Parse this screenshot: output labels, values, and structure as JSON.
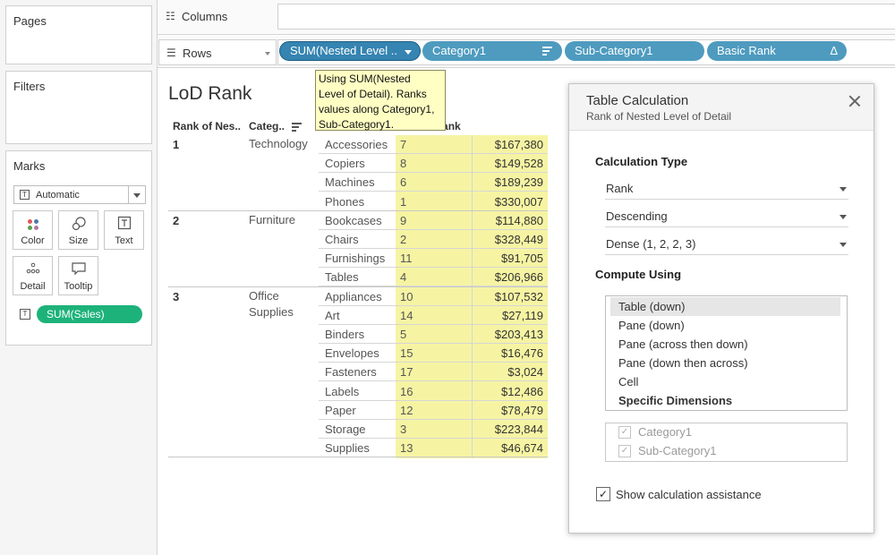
{
  "panels": {
    "pages": "Pages",
    "filters": "Filters",
    "marks": "Marks"
  },
  "marks": {
    "type": "Automatic",
    "buttons": [
      "Color",
      "Size",
      "Text",
      "Detail",
      "Tooltip"
    ],
    "pill": "SUM(Sales)"
  },
  "shelves": {
    "columns_label": "Columns",
    "rows_label": "Rows",
    "row_pills": [
      "SUM(Nested Level ..",
      "Category1",
      "Sub-Category1",
      "Basic Rank"
    ]
  },
  "tooltip": {
    "lines": [
      "Using SUM(Nested",
      "Level of Detail). Ranks",
      "values along Category1,",
      "Sub-Category1."
    ]
  },
  "sheet": {
    "title": "LoD Rank",
    "headers": {
      "rank": "Rank of Nes..",
      "category": "Categ..",
      "basic_rank": "Basic Rank"
    },
    "groups": [
      {
        "rank": "1",
        "category": "Technology",
        "rows": [
          {
            "sub": "Accessories",
            "rank": "7",
            "sales": "$167,380"
          },
          {
            "sub": "Copiers",
            "rank": "8",
            "sales": "$149,528"
          },
          {
            "sub": "Machines",
            "rank": "6",
            "sales": "$189,239"
          },
          {
            "sub": "Phones",
            "rank": "1",
            "sales": "$330,007"
          }
        ]
      },
      {
        "rank": "2",
        "category": "Furniture",
        "rows": [
          {
            "sub": "Bookcases",
            "rank": "9",
            "sales": "$114,880"
          },
          {
            "sub": "Chairs",
            "rank": "2",
            "sales": "$328,449"
          },
          {
            "sub": "Furnishings",
            "rank": "11",
            "sales": "$91,705"
          },
          {
            "sub": "Tables",
            "rank": "4",
            "sales": "$206,966"
          }
        ]
      },
      {
        "rank": "3",
        "category": "Office Supplies",
        "rows": [
          {
            "sub": "Appliances",
            "rank": "10",
            "sales": "$107,532"
          },
          {
            "sub": "Art",
            "rank": "14",
            "sales": "$27,119"
          },
          {
            "sub": "Binders",
            "rank": "5",
            "sales": "$203,413"
          },
          {
            "sub": "Envelopes",
            "rank": "15",
            "sales": "$16,476"
          },
          {
            "sub": "Fasteners",
            "rank": "17",
            "sales": "$3,024"
          },
          {
            "sub": "Labels",
            "rank": "16",
            "sales": "$12,486"
          },
          {
            "sub": "Paper",
            "rank": "12",
            "sales": "$78,479"
          },
          {
            "sub": "Storage",
            "rank": "3",
            "sales": "$223,844"
          },
          {
            "sub": "Supplies",
            "rank": "13",
            "sales": "$46,674"
          }
        ]
      }
    ]
  },
  "dialog": {
    "title": "Table Calculation",
    "subtitle": "Rank of Nested Level of Detail",
    "calc_type_label": "Calculation Type",
    "calc_type": "Rank",
    "order": "Descending",
    "rank_method": "Dense (1, 2, 2, 3)",
    "compute_label": "Compute Using",
    "compute_options": [
      "Table (down)",
      "Pane (down)",
      "Pane (across then down)",
      "Pane (down then across)",
      "Cell",
      "Specific Dimensions"
    ],
    "dimensions": [
      "Category1",
      "Sub-Category1"
    ],
    "show_assist": "Show calculation assistance"
  }
}
